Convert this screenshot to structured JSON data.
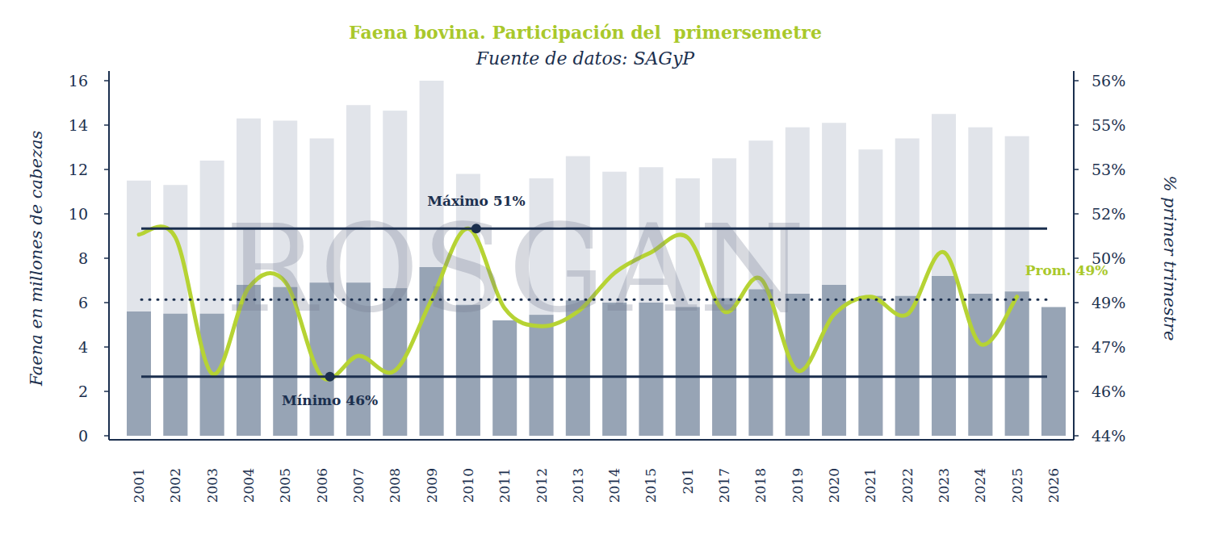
{
  "chart_data": {
    "type": "bar",
    "title": "Faena bovina. Participación del  primersemetre",
    "subtitle": "Fuente de datos: SAGyP",
    "y_label": "Faena en millones de cabezas",
    "y2_label": "% primer trimestre",
    "watermark": "ROSGAN",
    "categories": [
      "2001",
      "2002",
      "2003",
      "2004",
      "2005",
      "2006",
      "2007",
      "2008",
      "2009",
      "2010",
      "2011",
      "2012",
      "2013",
      "2014",
      "2015",
      "201",
      "2017",
      "2018",
      "2019",
      "2020",
      "2021",
      "2022",
      "2023",
      "2024",
      "2025",
      "2026"
    ],
    "series": [
      {
        "type": "bar",
        "color": "#e1e4ea",
        "values": [
          11.5,
          11.3,
          12.4,
          14.3,
          14.2,
          13.4,
          14.9,
          14.65,
          16.0,
          11.8,
          null,
          11.6,
          12.6,
          11.9,
          12.1,
          11.6,
          12.5,
          13.3,
          13.9,
          14.1,
          12.9,
          13.4,
          14.5,
          13.9,
          13.5,
          null
        ]
      },
      {
        "type": "bar",
        "color": "#97a4b5",
        "values": [
          5.6,
          5.5,
          5.5,
          6.8,
          6.7,
          6.9,
          6.9,
          6.65,
          7.6,
          5.9,
          5.2,
          5.45,
          6.1,
          6.0,
          6.0,
          5.8,
          6.2,
          6.6,
          6.4,
          6.8,
          6.3,
          6.3,
          7.2,
          6.4,
          6.5,
          5.8
        ]
      },
      {
        "type": "line",
        "axis": "y2",
        "color": "#b6d334",
        "values": [
          50.8,
          50.7,
          46.1,
          49.0,
          49.2,
          46.0,
          46.7,
          46.2,
          48.6,
          51.0,
          48.3,
          47.7,
          48.2,
          49.5,
          50.2,
          50.7,
          48.2,
          49.3,
          46.2,
          48.1,
          48.7,
          48.1,
          50.2,
          47.1,
          48.7,
          null
        ]
      }
    ],
    "reference_lines": [
      {
        "label": "Máximo 51%",
        "value": 51,
        "x": "2010",
        "color": "#1b2f4e",
        "line_style": "solid",
        "marker": "circle"
      },
      {
        "label": "Mínimo 46%",
        "value": 46,
        "x": "2006",
        "color": "#1b2f4e",
        "line_style": "solid",
        "marker": "circle"
      },
      {
        "label": "Prom. 49%",
        "value": 48.6,
        "x": "2025",
        "color": "#1b2f4e",
        "line_style": "dotted"
      }
    ],
    "ylim": [
      0,
      16
    ],
    "yticks": [
      0,
      2,
      4,
      6,
      8,
      10,
      12,
      14,
      16
    ],
    "y2lim": [
      44,
      56
    ],
    "y2ticks": [
      {
        "value": 44,
        "label": "44%"
      },
      {
        "value": 45.5,
        "label": "46%"
      },
      {
        "value": 47,
        "label": "47%"
      },
      {
        "value": 48.5,
        "label": "49%"
      },
      {
        "value": 50,
        "label": "50%"
      },
      {
        "value": 51.5,
        "label": "52%"
      },
      {
        "value": 53,
        "label": "53%"
      },
      {
        "value": 54.5,
        "label": "55%"
      },
      {
        "value": 56,
        "label": "56%"
      }
    ],
    "grid": false,
    "stacked": false
  }
}
